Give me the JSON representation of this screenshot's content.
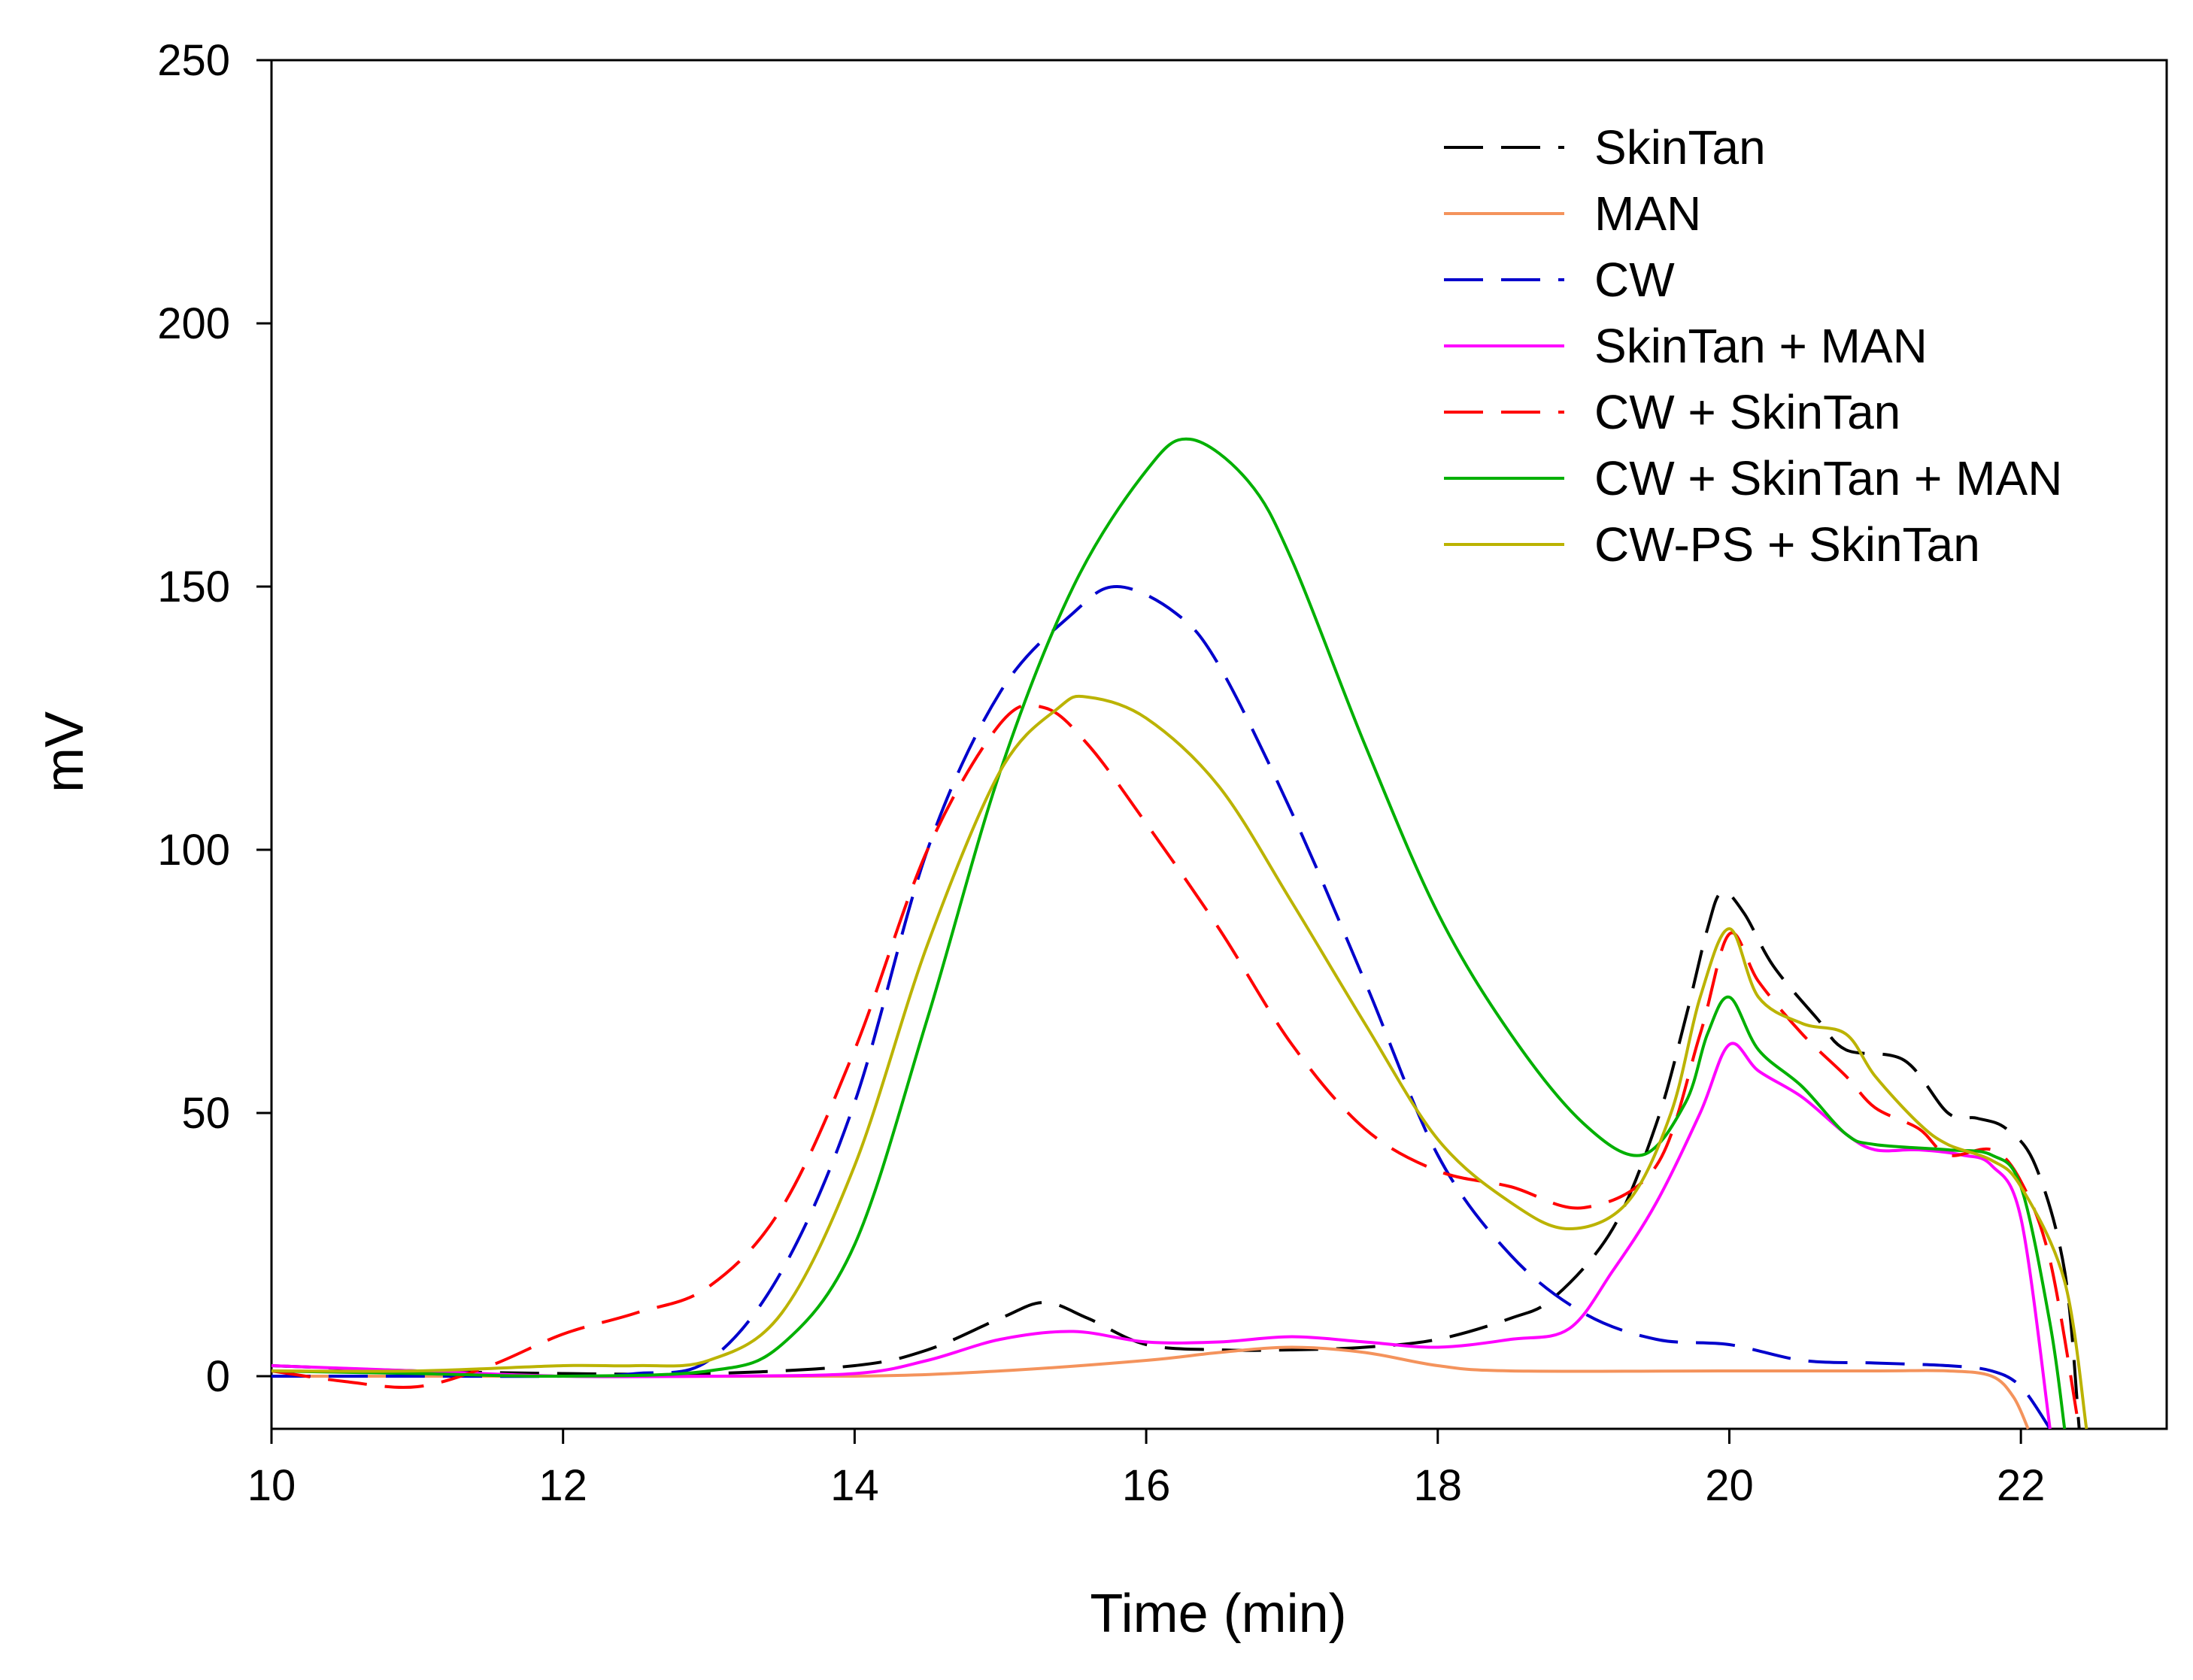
{
  "chart_data": {
    "type": "line",
    "title": "",
    "xlabel": "Time (min)",
    "ylabel": "mV",
    "xlim": [
      10,
      23
    ],
    "ylim": [
      -10,
      250
    ],
    "xticks": [
      10,
      12,
      14,
      16,
      18,
      20,
      22
    ],
    "yticks": [
      0,
      50,
      100,
      150,
      200,
      250
    ],
    "grid": false,
    "legend_position": "top-right",
    "series": [
      {
        "name": "SkinTan",
        "color": "#000000",
        "style": "dashed",
        "points": [
          [
            10,
            2
          ],
          [
            11,
            1
          ],
          [
            12,
            0.5
          ],
          [
            13,
            0.5
          ],
          [
            14,
            2
          ],
          [
            14.5,
            5
          ],
          [
            15,
            11
          ],
          [
            15.3,
            14
          ],
          [
            15.6,
            11
          ],
          [
            16,
            6
          ],
          [
            16.5,
            5
          ],
          [
            17,
            5
          ],
          [
            17.5,
            5.5
          ],
          [
            18,
            7
          ],
          [
            18.5,
            11
          ],
          [
            18.8,
            15
          ],
          [
            19.2,
            28
          ],
          [
            19.5,
            48
          ],
          [
            19.7,
            68
          ],
          [
            19.85,
            85
          ],
          [
            19.95,
            92
          ],
          [
            20.1,
            88
          ],
          [
            20.3,
            78
          ],
          [
            20.6,
            68
          ],
          [
            20.8,
            62
          ],
          [
            21.2,
            60
          ],
          [
            21.5,
            50
          ],
          [
            21.7,
            49
          ],
          [
            21.9,
            47
          ],
          [
            22.1,
            40
          ],
          [
            22.3,
            20
          ],
          [
            22.4,
            -10
          ]
        ]
      },
      {
        "name": "MAN",
        "color": "#F4935C",
        "style": "solid",
        "points": [
          [
            10,
            0
          ],
          [
            12,
            0
          ],
          [
            14,
            0
          ],
          [
            15,
            1
          ],
          [
            16,
            3
          ],
          [
            16.5,
            4.5
          ],
          [
            17,
            5.5
          ],
          [
            17.5,
            4.5
          ],
          [
            18,
            2
          ],
          [
            18.5,
            1
          ],
          [
            20,
            1
          ],
          [
            21,
            1
          ],
          [
            21.5,
            1
          ],
          [
            21.8,
            0
          ],
          [
            21.95,
            -4
          ],
          [
            22.05,
            -10
          ]
        ]
      },
      {
        "name": "CW",
        "color": "#0000CC",
        "style": "dashed",
        "points": [
          [
            10,
            0
          ],
          [
            11,
            0
          ],
          [
            12,
            0
          ],
          [
            12.5,
            0.5
          ],
          [
            13,
            3
          ],
          [
            13.5,
            20
          ],
          [
            14,
            52
          ],
          [
            14.5,
            100
          ],
          [
            15,
            130
          ],
          [
            15.5,
            145
          ],
          [
            15.8,
            150
          ],
          [
            16.2,
            145
          ],
          [
            16.5,
            135
          ],
          [
            17,
            107
          ],
          [
            17.5,
            75
          ],
          [
            18,
            42
          ],
          [
            18.5,
            23
          ],
          [
            19,
            12
          ],
          [
            19.5,
            7
          ],
          [
            20,
            6
          ],
          [
            20.5,
            3
          ],
          [
            21,
            2.5
          ],
          [
            21.5,
            2
          ],
          [
            21.8,
            1
          ],
          [
            22,
            -2
          ],
          [
            22.2,
            -10
          ]
        ]
      },
      {
        "name": "SkinTan + MAN",
        "color": "#FF00FF",
        "style": "solid",
        "points": [
          [
            10,
            2
          ],
          [
            11,
            1
          ],
          [
            12,
            0
          ],
          [
            13,
            0
          ],
          [
            14,
            0.5
          ],
          [
            14.5,
            3
          ],
          [
            15,
            7
          ],
          [
            15.5,
            8.5
          ],
          [
            16,
            6.5
          ],
          [
            16.5,
            6.5
          ],
          [
            17,
            7.5
          ],
          [
            17.5,
            6.5
          ],
          [
            18,
            5.5
          ],
          [
            18.5,
            7
          ],
          [
            18.9,
            9
          ],
          [
            19.2,
            20
          ],
          [
            19.5,
            33
          ],
          [
            19.8,
            50
          ],
          [
            20,
            63
          ],
          [
            20.2,
            58
          ],
          [
            20.5,
            53
          ],
          [
            20.8,
            46
          ],
          [
            21,
            43
          ],
          [
            21.3,
            43
          ],
          [
            21.6,
            42
          ],
          [
            21.8,
            40
          ],
          [
            22,
            30
          ],
          [
            22.2,
            -10
          ]
        ]
      },
      {
        "name": "CW + SkinTan",
        "color": "#FF0000",
        "style": "dashed",
        "points": [
          [
            10,
            1
          ],
          [
            10.5,
            -1
          ],
          [
            11,
            -2
          ],
          [
            11.5,
            2
          ],
          [
            12,
            8
          ],
          [
            12.5,
            12
          ],
          [
            13,
            17
          ],
          [
            13.5,
            32
          ],
          [
            14,
            62
          ],
          [
            14.5,
            100
          ],
          [
            15,
            124
          ],
          [
            15.3,
            127
          ],
          [
            15.6,
            120
          ],
          [
            16,
            105
          ],
          [
            16.5,
            85
          ],
          [
            17,
            63
          ],
          [
            17.5,
            47
          ],
          [
            18,
            39
          ],
          [
            18.5,
            36
          ],
          [
            19,
            32
          ],
          [
            19.5,
            40
          ],
          [
            19.8,
            65
          ],
          [
            20,
            84
          ],
          [
            20.2,
            75
          ],
          [
            20.5,
            65
          ],
          [
            20.8,
            57
          ],
          [
            21,
            51
          ],
          [
            21.3,
            47
          ],
          [
            21.5,
            42
          ],
          [
            21.8,
            43
          ],
          [
            22,
            37
          ],
          [
            22.2,
            22
          ],
          [
            22.4,
            -10
          ]
        ]
      },
      {
        "name": "CW + SkinTan + MAN",
        "color": "#00B000",
        "style": "solid",
        "points": [
          [
            10,
            1
          ],
          [
            11,
            0.5
          ],
          [
            12,
            0
          ],
          [
            13,
            1
          ],
          [
            13.5,
            6
          ],
          [
            14,
            25
          ],
          [
            14.5,
            68
          ],
          [
            15,
            115
          ],
          [
            15.5,
            150
          ],
          [
            16,
            172
          ],
          [
            16.3,
            178
          ],
          [
            16.7,
            170
          ],
          [
            17,
            155
          ],
          [
            17.5,
            120
          ],
          [
            18,
            88
          ],
          [
            18.5,
            65
          ],
          [
            19,
            48
          ],
          [
            19.4,
            42
          ],
          [
            19.7,
            52
          ],
          [
            19.85,
            65
          ],
          [
            20,
            72
          ],
          [
            20.2,
            62
          ],
          [
            20.5,
            55
          ],
          [
            20.8,
            46
          ],
          [
            21,
            44
          ],
          [
            21.5,
            43
          ],
          [
            21.8,
            42
          ],
          [
            22,
            36
          ],
          [
            22.2,
            10
          ],
          [
            22.3,
            -10
          ]
        ]
      },
      {
        "name": "CW-PS + SkinTan",
        "color": "#BBB300",
        "style": "solid",
        "points": [
          [
            10,
            1
          ],
          [
            11,
            1
          ],
          [
            12,
            2
          ],
          [
            12.5,
            2
          ],
          [
            13,
            3
          ],
          [
            13.5,
            12
          ],
          [
            14,
            40
          ],
          [
            14.5,
            82
          ],
          [
            15,
            115
          ],
          [
            15.4,
            127
          ],
          [
            15.6,
            129
          ],
          [
            16,
            125
          ],
          [
            16.5,
            112
          ],
          [
            17,
            90
          ],
          [
            17.5,
            67
          ],
          [
            18,
            45
          ],
          [
            18.5,
            33
          ],
          [
            18.9,
            28
          ],
          [
            19.3,
            33
          ],
          [
            19.6,
            50
          ],
          [
            19.8,
            72
          ],
          [
            20,
            85
          ],
          [
            20.2,
            72
          ],
          [
            20.5,
            67
          ],
          [
            20.8,
            65
          ],
          [
            21,
            57
          ],
          [
            21.3,
            48
          ],
          [
            21.5,
            44
          ],
          [
            21.8,
            41
          ],
          [
            22,
            36
          ],
          [
            22.3,
            18
          ],
          [
            22.45,
            -10
          ]
        ]
      }
    ]
  }
}
